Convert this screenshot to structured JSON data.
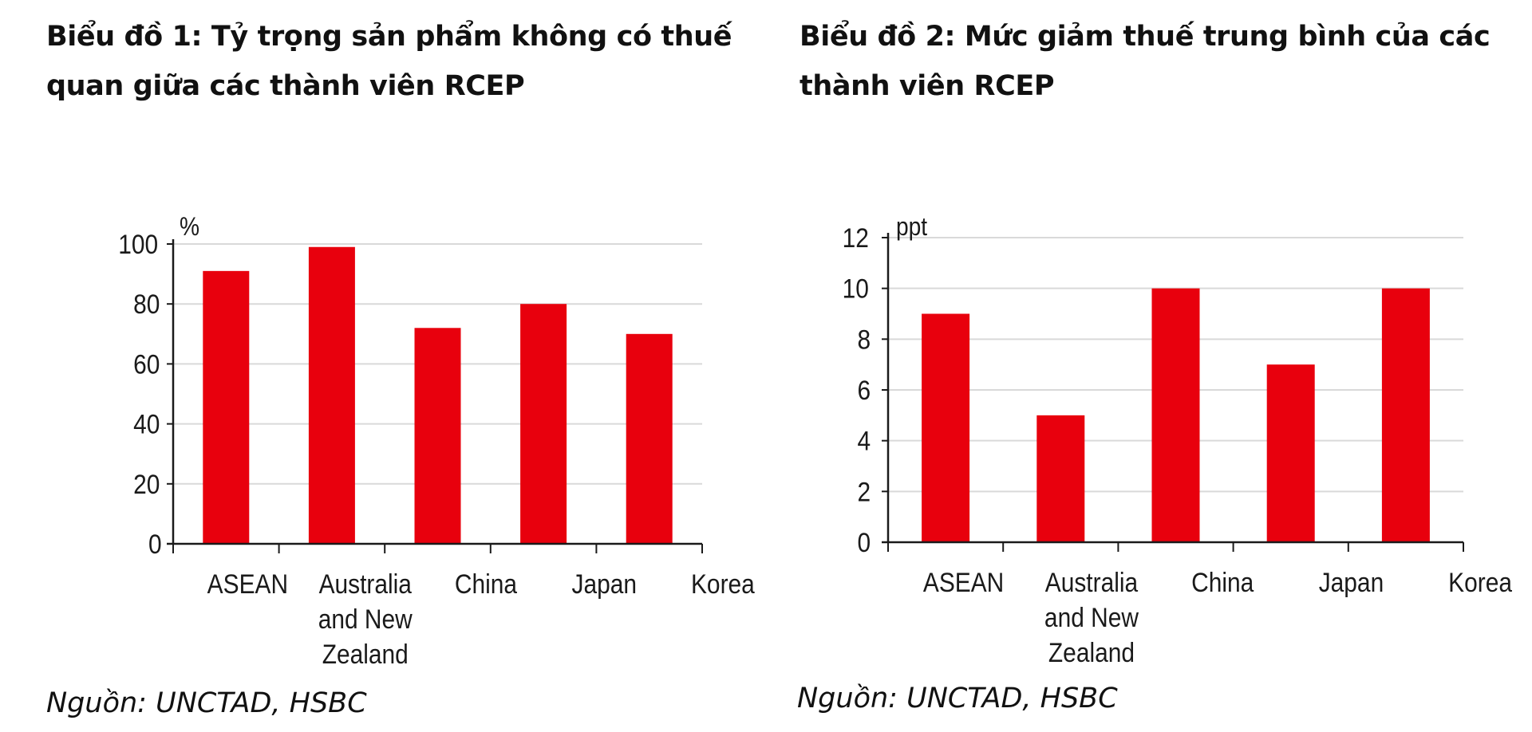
{
  "chart_data": [
    {
      "type": "bar",
      "title": "Biểu đồ 1: Tỷ trọng sản phẩm không có thuế quan giữa các thành viên RCEP",
      "ylabel": "%",
      "categories": [
        "ASEAN",
        "Australia and New Zealand",
        "China",
        "Japan",
        "Korea"
      ],
      "category_lines": [
        [
          "ASEAN"
        ],
        [
          "Australia",
          "and New",
          "Zealand"
        ],
        [
          "China"
        ],
        [
          "Japan"
        ],
        [
          "Korea"
        ]
      ],
      "values": [
        91,
        99,
        72,
        80,
        70
      ],
      "ylim": [
        0,
        100
      ],
      "yticks": [
        0,
        20,
        40,
        60,
        80,
        100
      ],
      "grid": true,
      "bar_color": "#e8000d",
      "source": "Nguồn: UNCTAD, HSBC"
    },
    {
      "type": "bar",
      "title": "Biểu đồ 2: Mức giảm thuế trung bình của các thành viên RCEP",
      "ylabel": "ppt",
      "categories": [
        "ASEAN",
        "Australia and New Zealand",
        "China",
        "Japan",
        "Korea"
      ],
      "category_lines": [
        [
          "ASEAN"
        ],
        [
          "Australia",
          "and New",
          "Zealand"
        ],
        [
          "China"
        ],
        [
          "Japan"
        ],
        [
          "Korea"
        ]
      ],
      "values": [
        9,
        5,
        10,
        7,
        10
      ],
      "ylim": [
        0,
        12
      ],
      "yticks": [
        0,
        2,
        4,
        6,
        8,
        10,
        12
      ],
      "grid": true,
      "bar_color": "#e8000d",
      "source": "Nguồn: UNCTAD, HSBC"
    }
  ],
  "colors": {
    "bar": "#e8000d",
    "grid": "#d9d9d9",
    "axis": "#1a1a1a",
    "text": "#111111"
  }
}
